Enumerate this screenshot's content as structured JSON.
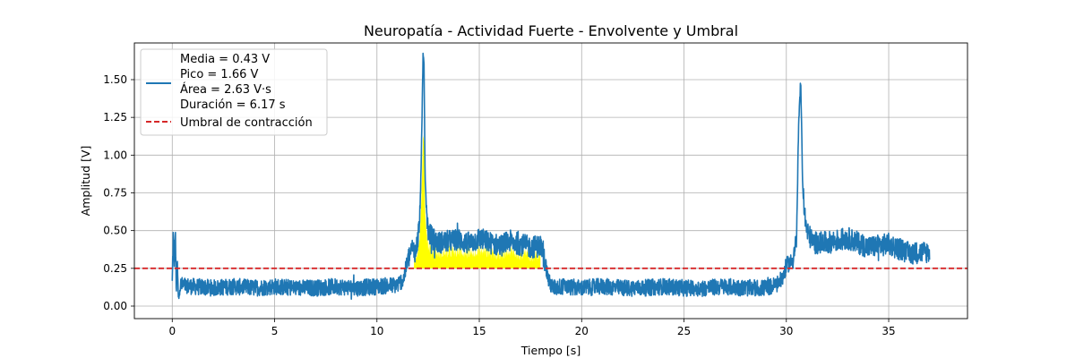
{
  "chart_data": {
    "type": "line",
    "title": "Neuropatía - Actividad Fuerte - Envolvente y Umbral",
    "xlabel": "Tiempo [s]",
    "ylabel": "Amplitud [V]",
    "xlim": [
      -1.85,
      38.85
    ],
    "ylim": [
      -0.083,
      1.743
    ],
    "x_ticks": [
      0,
      5,
      10,
      15,
      20,
      25,
      30,
      35
    ],
    "x_tick_labels": [
      "0",
      "5",
      "10",
      "15",
      "20",
      "25",
      "30",
      "35"
    ],
    "y_ticks": [
      0.0,
      0.25,
      0.5,
      0.75,
      1.0,
      1.25,
      1.5
    ],
    "y_tick_labels": [
      "0.00",
      "0.25",
      "0.50",
      "0.75",
      "1.00",
      "1.25",
      "1.50"
    ],
    "grid": true,
    "legend_position": "top-left",
    "threshold": 0.25,
    "fill_interval": [
      11.8,
      18.0
    ],
    "series": [
      {
        "name": "",
        "legend_lines": [
          "Media = 0.43 V",
          "Pico = 1.66 V",
          "Área = 2.63 V·s",
          "Duración = 6.17 s"
        ],
        "color": "#1f77b4",
        "x": [
          0.0,
          0.05,
          0.1,
          0.15,
          0.2,
          0.25,
          0.3,
          0.4,
          1.0,
          2.0,
          3.0,
          4.0,
          5.0,
          6.0,
          7.0,
          8.0,
          9.0,
          10.0,
          11.0,
          11.3,
          11.5,
          11.7,
          11.9,
          12.0,
          12.1,
          12.2,
          12.25,
          12.3,
          12.35,
          12.4,
          12.5,
          12.7,
          13.0,
          13.5,
          14.0,
          14.5,
          15.0,
          15.5,
          16.0,
          16.5,
          17.0,
          17.5,
          18.0,
          18.2,
          18.4,
          18.6,
          19.0,
          20.0,
          21.0,
          22.0,
          23.0,
          24.0,
          25.0,
          26.0,
          27.0,
          28.0,
          29.0,
          29.5,
          29.8,
          30.0,
          30.3,
          30.5,
          30.6,
          30.7,
          30.8,
          30.9,
          31.0,
          31.3,
          32.0,
          33.0,
          34.0,
          35.0,
          36.0,
          37.0
        ],
        "y": [
          0.15,
          0.47,
          0.28,
          0.47,
          0.1,
          0.27,
          0.04,
          0.14,
          0.13,
          0.12,
          0.13,
          0.12,
          0.13,
          0.12,
          0.12,
          0.13,
          0.12,
          0.13,
          0.14,
          0.18,
          0.3,
          0.38,
          0.36,
          0.45,
          0.6,
          1.2,
          1.66,
          1.62,
          0.9,
          0.7,
          0.5,
          0.45,
          0.42,
          0.43,
          0.44,
          0.41,
          0.45,
          0.42,
          0.4,
          0.43,
          0.41,
          0.39,
          0.4,
          0.3,
          0.16,
          0.12,
          0.13,
          0.12,
          0.13,
          0.12,
          0.12,
          0.13,
          0.12,
          0.12,
          0.13,
          0.12,
          0.12,
          0.14,
          0.18,
          0.27,
          0.3,
          0.45,
          1.2,
          1.49,
          0.8,
          0.6,
          0.5,
          0.42,
          0.42,
          0.45,
          0.39,
          0.41,
          0.35,
          0.36
        ],
        "noise": 0.055
      }
    ],
    "threshold_series": {
      "name": "Umbral de contracción",
      "color": "#d62728",
      "y": 0.25
    },
    "fill_color": "#ffff00"
  }
}
